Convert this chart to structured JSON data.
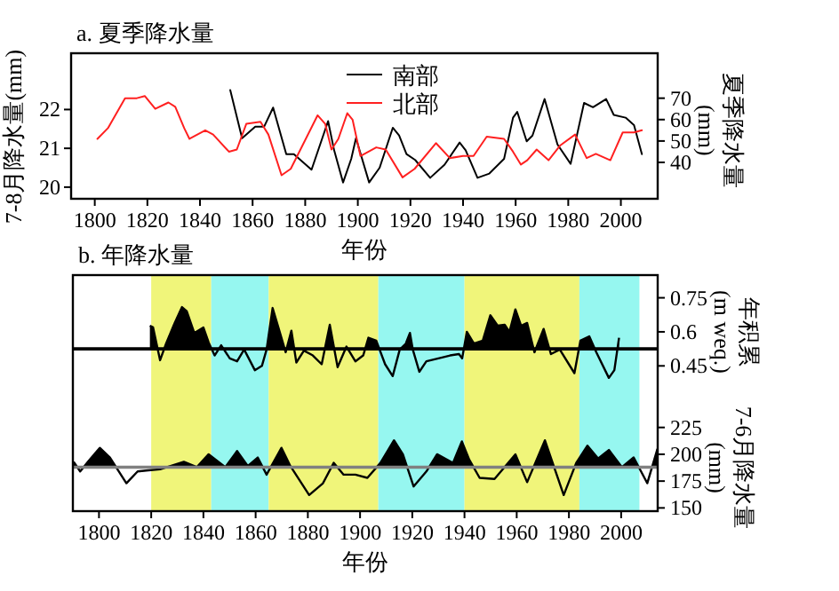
{
  "chart_data": [
    {
      "type": "line",
      "title": "a. 夏季降水量",
      "xlabel": "年份",
      "ylabel": "7-8月降水量(mm)",
      "y2label": "夏季降水量(mm)",
      "xlim": [
        1791,
        2014
      ],
      "xticks": [
        1800,
        1820,
        1840,
        1860,
        1880,
        1900,
        1920,
        1940,
        1960,
        1980,
        2000
      ],
      "ylim": [
        19.7,
        23.45
      ],
      "yticks": [
        20,
        21,
        22
      ],
      "y2lim": [
        23,
        91
      ],
      "y2ticks": [
        40,
        50,
        60,
        70
      ],
      "legend": "top",
      "grid": false,
      "series": [
        {
          "name": "南部",
          "color": "#000000",
          "axis": "y",
          "x": [
            1851.5,
            1856,
            1861,
            1864.4,
            1867.8,
            1872.8,
            1875.7,
            1882.4,
            1888.7,
            1891,
            1894.4,
            1897.5,
            1899.3,
            1904.3,
            1908.3,
            1913.3,
            1915.7,
            1918.5,
            1921.8,
            1927.5,
            1933,
            1938.7,
            1941,
            1945.5,
            1950,
            1955.6,
            1959,
            1960.6,
            1964.2,
            1966.4,
            1971,
            1975.9,
            1980.9,
            1986,
            1989.4,
            1994.4,
            1997.3,
            2001.8,
            2005,
            2008
          ],
          "values": [
            22.5,
            21.26,
            21.56,
            21.56,
            22.05,
            20.85,
            20.85,
            20.45,
            21.7,
            20.95,
            20.12,
            20.73,
            21.26,
            20.12,
            20.5,
            21.53,
            21.33,
            20.85,
            20.7,
            20.24,
            20.58,
            21.15,
            20.95,
            20.24,
            20.35,
            20.73,
            21.79,
            21.94,
            21.18,
            21.33,
            22.27,
            21.1,
            20.6,
            22.17,
            22.06,
            22.27,
            21.86,
            21.79,
            21.6,
            20.85
          ]
        },
        {
          "name": "北部",
          "color": "#ff2020",
          "axis": "y2",
          "x": [
            1801,
            1805,
            1811.5,
            1816,
            1819,
            1823,
            1828,
            1830.6,
            1834,
            1836,
            1842,
            1845,
            1851,
            1854,
            1857.6,
            1863,
            1866,
            1871,
            1874.5,
            1879,
            1884.7,
            1887.6,
            1890,
            1892.6,
            1896,
            1898,
            1901,
            1907,
            1910.6,
            1917,
            1921.6,
            1929.7,
            1935,
            1940,
            1944,
            1949,
            1955.6,
            1959,
            1962,
            1964.4,
            1968,
            1972.5,
            1977,
            1982.6,
            1987,
            1990.5,
            1996,
            2000.7,
            2005,
            2008
          ],
          "values": [
            51,
            56,
            70,
            70,
            71,
            65,
            68,
            66,
            56,
            51,
            55,
            53,
            45,
            46,
            58,
            59,
            53,
            34,
            37,
            48,
            62,
            58,
            46,
            51,
            63,
            60,
            43,
            47,
            46,
            33,
            37,
            49,
            42,
            43,
            43,
            52,
            51,
            45,
            39,
            41,
            46,
            41,
            48,
            53,
            42,
            44,
            41,
            54,
            54,
            55
          ]
        }
      ]
    },
    {
      "type": "area",
      "title": "b. 年降水量",
      "xlabel": "年份",
      "y2label": "年积累(m weq.)",
      "y3label": "7-6月降水量(mm)",
      "xlim": [
        1790,
        2014
      ],
      "xticks": [
        1800,
        1820,
        1840,
        1860,
        1880,
        1900,
        1920,
        1940,
        1960,
        1980,
        2000
      ],
      "y2lim": [
        -0.19,
        0.85
      ],
      "y2ticks": [
        0.45,
        0.6,
        0.75
      ],
      "y3lim": [
        147,
        367
      ],
      "y3ticks": [
        150,
        175,
        200,
        225
      ],
      "grid": false,
      "bands": [
        {
          "axis": "x",
          "from": 1820,
          "to": 1843,
          "color": "#f0f57a"
        },
        {
          "axis": "x",
          "from": 1843,
          "to": 1865,
          "color": "#96f7f0"
        },
        {
          "axis": "x",
          "from": 1865,
          "to": 1907,
          "color": "#f0f57a"
        },
        {
          "axis": "x",
          "from": 1907,
          "to": 1940,
          "color": "#96f7f0"
        },
        {
          "axis": "x",
          "from": 1940,
          "to": 1984,
          "color": "#f0f57a"
        },
        {
          "axis": "x",
          "from": 1984,
          "to": 2007,
          "color": "#96f7f0"
        }
      ],
      "ref_lines": [
        {
          "axis": "y2",
          "value": 0.525,
          "color": "#000000"
        },
        {
          "axis": "y3",
          "value": 188,
          "color": "#808080"
        }
      ],
      "series": [
        {
          "color": "#000000",
          "axis": "y2",
          "x": [
            1819.5,
            1820.7,
            1823.4,
            1825.7,
            1829,
            1831.8,
            1833.6,
            1836.5,
            1840,
            1842,
            1844.3,
            1846.8,
            1850.1,
            1852.9,
            1855.6,
            1859.7,
            1862.4,
            1864.2,
            1866.5,
            1869.2,
            1871.5,
            1873.7,
            1875.6,
            1878.5,
            1881.9,
            1885.3,
            1888.4,
            1891.4,
            1894.8,
            1898.2,
            1901.2,
            1903.2,
            1906.2,
            1909.6,
            1912.5,
            1915.2,
            1917.5,
            1919.1,
            1920.2,
            1922.7,
            1925.4,
            1930,
            1934.5,
            1937.9,
            1939.1,
            1940.9,
            1943.6,
            1947,
            1949.9,
            1952.7,
            1955.4,
            1957.2,
            1959.5,
            1961.7,
            1964,
            1966.8,
            1970.3,
            1973.1,
            1976.5,
            1982.1,
            1984.4,
            1987.8,
            1990.5,
            1995.3,
            1997.4,
            1999.2
          ],
          "values": [
            0.627,
            0.62,
            0.475,
            0.548,
            0.639,
            0.709,
            0.691,
            0.595,
            0.619,
            0.553,
            0.496,
            0.541,
            0.483,
            0.47,
            0.522,
            0.431,
            0.45,
            0.522,
            0.705,
            0.6,
            0.51,
            0.605,
            0.465,
            0.517,
            0.496,
            0.457,
            0.631,
            0.444,
            0.535,
            0.47,
            0.496,
            0.574,
            0.561,
            0.457,
            0.405,
            0.522,
            0.548,
            0.595,
            0.522,
            0.424,
            0.47,
            0.483,
            0.496,
            0.502,
            0.483,
            0.6,
            0.548,
            0.561,
            0.673,
            0.627,
            0.631,
            0.6,
            0.699,
            0.627,
            0.639,
            0.51,
            0.613,
            0.502,
            0.522,
            0.418,
            0.561,
            0.58,
            0.51,
            0.397,
            0.431,
            0.574
          ]
        },
        {
          "color": "#000000",
          "axis": "y3",
          "x": [
            1790.3,
            1792.8,
            1795.8,
            1800.3,
            1804.2,
            1810.5,
            1814.8,
            1818.9,
            1823.4,
            1832.5,
            1837.5,
            1842,
            1848.4,
            1852.9,
            1857,
            1860.8,
            1864.2,
            1869.9,
            1873.3,
            1880.5,
            1885.8,
            1889.9,
            1893.7,
            1898.2,
            1902.8,
            1907.8,
            1913,
            1916.4,
            1920.5,
            1925.4,
            1929.5,
            1935.6,
            1939,
            1941.8,
            1945.8,
            1951.5,
            1959.5,
            1964,
            1970.8,
            1978,
            1982.8,
            1987.1,
            1991.2,
            1995.3,
            2000.3,
            2004.8,
            2010,
            2012.7,
            2013.9
          ],
          "values": [
            193,
            184,
            193,
            206,
            197,
            173,
            184,
            185,
            186,
            193,
            188,
            200,
            188,
            203,
            189,
            197,
            181,
            206,
            189,
            162,
            173,
            192,
            181,
            181,
            178,
            192,
            213,
            200,
            170,
            184,
            200,
            192,
            212,
            195,
            178,
            177,
            200,
            174,
            213,
            162,
            192,
            208,
            196,
            204,
            188,
            197,
            173,
            195,
            205
          ]
        }
      ]
    }
  ]
}
